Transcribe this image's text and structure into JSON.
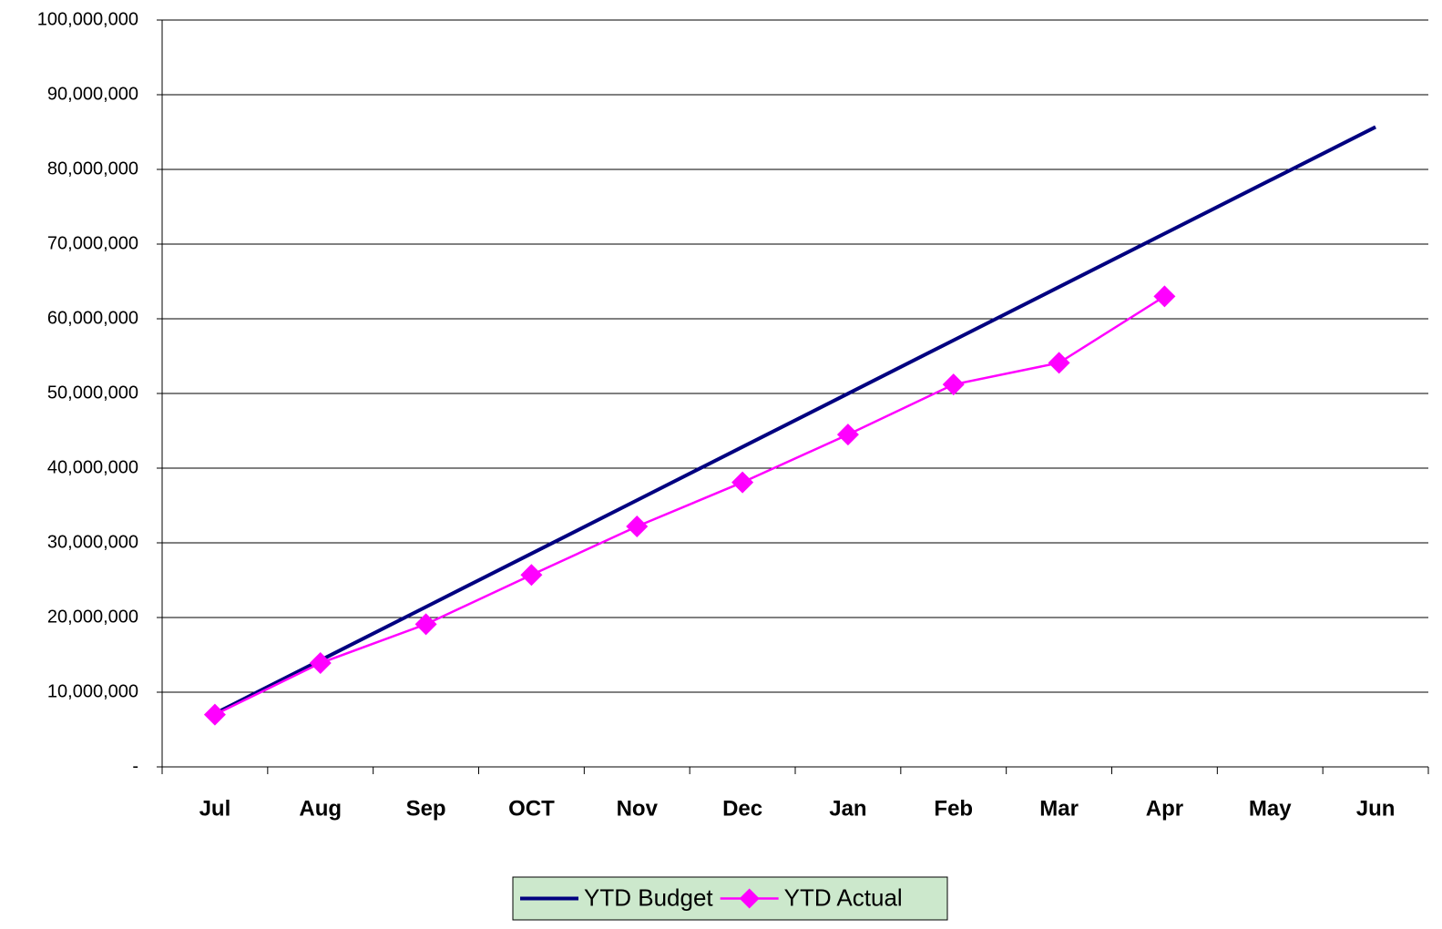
{
  "chart_data": {
    "type": "line",
    "categories": [
      "Jul",
      "Aug",
      "Sep",
      "OCT",
      "Nov",
      "Dec",
      "Jan",
      "Feb",
      "Mar",
      "Apr",
      "May",
      "Jun"
    ],
    "series": [
      {
        "name": "YTD Budget",
        "color": "#000080",
        "marker": "none",
        "values": [
          7140000,
          14280000,
          21420000,
          28560000,
          35700000,
          42840000,
          49980000,
          57120000,
          64260000,
          71400000,
          78540000,
          85680000
        ]
      },
      {
        "name": "YTD Actual",
        "color": "#ff00ff",
        "marker": "diamond",
        "values": [
          7000000,
          13900000,
          19100000,
          25700000,
          32200000,
          38100000,
          44500000,
          51200000,
          54100000,
          63000000,
          null,
          null
        ]
      }
    ],
    "ylim": [
      0,
      100000000
    ],
    "yticks": [
      {
        "value": 0,
        "label": "-"
      },
      {
        "value": 10000000,
        "label": "10,000,000"
      },
      {
        "value": 20000000,
        "label": "20,000,000"
      },
      {
        "value": 30000000,
        "label": "30,000,000"
      },
      {
        "value": 40000000,
        "label": "40,000,000"
      },
      {
        "value": 50000000,
        "label": "50,000,000"
      },
      {
        "value": 60000000,
        "label": "60,000,000"
      },
      {
        "value": 70000000,
        "label": "70,000,000"
      },
      {
        "value": 80000000,
        "label": "80,000,000"
      },
      {
        "value": 90000000,
        "label": "90,000,000"
      },
      {
        "value": 100000000,
        "label": "100,000,000"
      }
    ],
    "grid": true,
    "legend": "bottom"
  }
}
